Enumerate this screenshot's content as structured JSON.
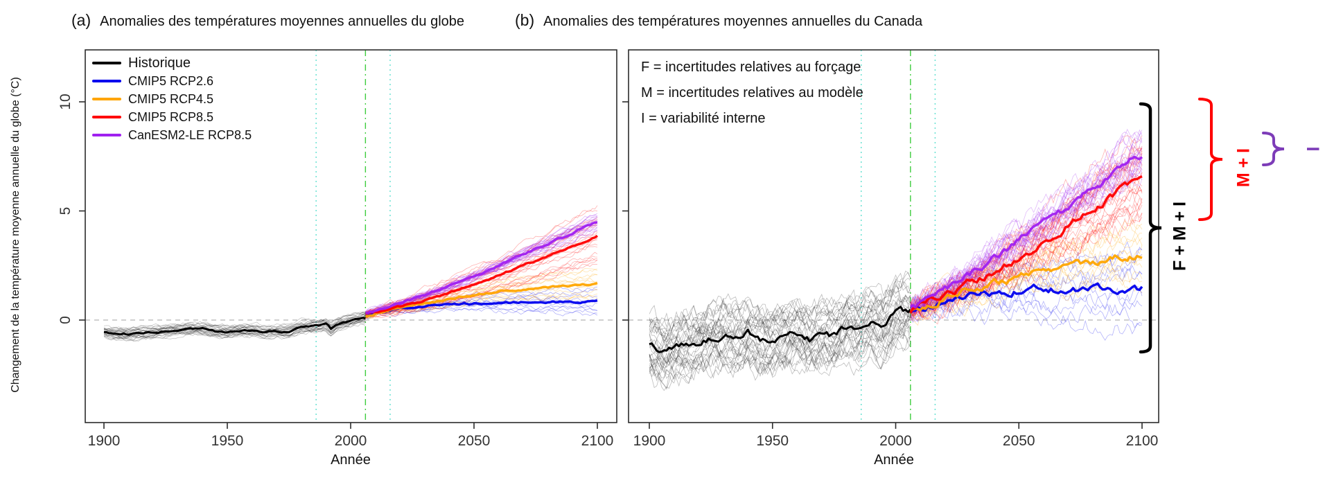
{
  "figure": {
    "panel_a": {
      "tag": "(a)",
      "title": "Anomalies des températures moyennes annuelles du globe"
    },
    "panel_b": {
      "tag": "(b)",
      "title": "Anomalies des températures moyennes annuelles du Canada"
    },
    "y_axis_label": "Changement de la température moyenne annuelle du globe (°C)",
    "x_axis_label": "Année"
  },
  "legend": {
    "items": [
      {
        "label": "Historique",
        "color": "#000000"
      },
      {
        "label": "CMIP5 RCP2.6",
        "color": "#0000ee"
      },
      {
        "label": "CMIP5 RCP4.5",
        "color": "#ffa500"
      },
      {
        "label": "CMIP5 RCP8.5",
        "color": "#ff0000"
      },
      {
        "label": "CanESM2-LE RCP8.5",
        "color": "#a020f0"
      }
    ]
  },
  "uncertainty_notes": {
    "lines": [
      "F = incertitudes relatives au forçage",
      "M = incertitudes relatives au modèle",
      "I = variabilité interne"
    ]
  },
  "brackets": [
    {
      "label": "F + M + I",
      "color": "#000000"
    },
    {
      "label": "M + I",
      "color": "#ff0000"
    },
    {
      "label": "I",
      "color": "#7d3cb8"
    }
  ],
  "chart_data": [
    {
      "type": "line",
      "title": "Anomalies des températures moyennes annuelles du globe",
      "xlabel": "Année",
      "ylabel": "Changement de la température moyenne annuelle du globe (°C)",
      "x_range": [
        1900,
        2100
      ],
      "ylim": [
        -4.7,
        12.4
      ],
      "x_ticks": [
        1900,
        1950,
        2000,
        2050,
        2100
      ],
      "y_ticks": [
        0,
        5,
        10
      ],
      "grid": false,
      "legend_position": "top-left",
      "reference_lines": {
        "vertical": [
          {
            "year": 1986,
            "style": "dotted",
            "color": "#5fe0cf"
          },
          {
            "year": 2006,
            "style": "dashdot",
            "color": "#3ecc3e"
          },
          {
            "year": 2016,
            "style": "dotted",
            "color": "#5fe0cf"
          }
        ],
        "horizontal": [
          {
            "value": 0,
            "style": "dashed",
            "color": "#b3b3b3"
          }
        ]
      },
      "mean_noise": 0.035,
      "series": [
        {
          "name": "Historique",
          "color": "#000000",
          "role": "historical",
          "members": 30,
          "spread": 0.25,
          "noise": 0.1,
          "years": [
            1900,
            1905,
            1910,
            1915,
            1920,
            1925,
            1930,
            1935,
            1940,
            1945,
            1950,
            1955,
            1960,
            1965,
            1970,
            1975,
            1980,
            1985,
            1990,
            1992,
            1995,
            2000,
            2005
          ],
          "values": [
            -0.55,
            -0.62,
            -0.65,
            -0.6,
            -0.55,
            -0.5,
            -0.45,
            -0.42,
            -0.4,
            -0.5,
            -0.55,
            -0.5,
            -0.48,
            -0.55,
            -0.5,
            -0.52,
            -0.32,
            -0.3,
            -0.2,
            -0.42,
            -0.18,
            -0.02,
            0.12
          ]
        },
        {
          "name": "CMIP5 RCP2.6",
          "color": "#0000ee",
          "role": "projection",
          "members": 10,
          "spread": 0.6,
          "noise": 0.12,
          "years": [
            2006,
            2020,
            2040,
            2060,
            2080,
            2100
          ],
          "values": [
            0.2,
            0.5,
            0.72,
            0.8,
            0.83,
            0.85
          ]
        },
        {
          "name": "CMIP5 RCP4.5",
          "color": "#ffa500",
          "role": "projection",
          "members": 12,
          "spread": 0.75,
          "noise": 0.12,
          "years": [
            2006,
            2020,
            2040,
            2060,
            2080,
            2100
          ],
          "values": [
            0.2,
            0.55,
            0.95,
            1.3,
            1.5,
            1.65
          ]
        },
        {
          "name": "CMIP5 RCP8.5",
          "color": "#ff0000",
          "role": "projection",
          "members": 22,
          "spread": 1.3,
          "noise": 0.12,
          "years": [
            2006,
            2020,
            2040,
            2060,
            2080,
            2100
          ],
          "values": [
            0.25,
            0.6,
            1.25,
            2.05,
            2.95,
            3.85
          ]
        },
        {
          "name": "CanESM2-LE RCP8.5",
          "color": "#a020f0",
          "role": "projection",
          "members": 22,
          "spread": 0.32,
          "noise": 0.12,
          "years": [
            2006,
            2020,
            2040,
            2060,
            2080,
            2100
          ],
          "values": [
            0.3,
            0.75,
            1.55,
            2.5,
            3.5,
            4.5
          ]
        }
      ]
    },
    {
      "type": "line",
      "title": "Anomalies des températures moyennes annuelles du Canada",
      "xlabel": "Année",
      "ylabel": "Changement de la température moyenne annuelle du globe (°C)",
      "x_range": [
        1900,
        2100
      ],
      "ylim": [
        -4.7,
        12.4
      ],
      "x_ticks": [
        1900,
        1950,
        2000,
        2050,
        2100
      ],
      "y_ticks": [
        0,
        5,
        10
      ],
      "grid": false,
      "legend_position": "none",
      "reference_lines": {
        "vertical": [
          {
            "year": 1986,
            "style": "dotted",
            "color": "#5fe0cf"
          },
          {
            "year": 2006,
            "style": "dashdot",
            "color": "#3ecc3e"
          },
          {
            "year": 2016,
            "style": "dotted",
            "color": "#5fe0cf"
          }
        ],
        "horizontal": [
          {
            "value": 0,
            "style": "dashed",
            "color": "#b3b3b3"
          }
        ]
      },
      "mean_noise": 0.13,
      "series": [
        {
          "name": "Historique",
          "color": "#000000",
          "role": "historical",
          "members": 35,
          "spread": 1.35,
          "noise": 0.5,
          "years": [
            1900,
            1905,
            1910,
            1915,
            1920,
            1925,
            1930,
            1935,
            1940,
            1945,
            1950,
            1955,
            1960,
            1965,
            1970,
            1975,
            1980,
            1985,
            1990,
            1995,
            2000,
            2005
          ],
          "values": [
            -1.2,
            -1.5,
            -1.35,
            -1.1,
            -1.0,
            -0.8,
            -0.7,
            -0.9,
            -0.6,
            -0.9,
            -1.0,
            -0.75,
            -0.6,
            -0.9,
            -0.7,
            -0.8,
            -0.3,
            -0.5,
            -0.1,
            -0.4,
            0.3,
            0.4
          ]
        },
        {
          "name": "CMIP5 RCP2.6",
          "color": "#0000ee",
          "role": "projection",
          "members": 10,
          "spread": 1.8,
          "noise": 0.45,
          "years": [
            2006,
            2020,
            2040,
            2060,
            2080,
            2100
          ],
          "values": [
            0.4,
            0.9,
            1.3,
            1.45,
            1.4,
            1.45
          ]
        },
        {
          "name": "CMIP5 RCP4.5",
          "color": "#ffa500",
          "role": "projection",
          "members": 12,
          "spread": 1.6,
          "noise": 0.45,
          "years": [
            2006,
            2020,
            2040,
            2060,
            2080,
            2100
          ],
          "values": [
            0.4,
            1.0,
            1.7,
            2.3,
            2.7,
            3.0
          ]
        },
        {
          "name": "CMIP5 RCP8.5",
          "color": "#ff0000",
          "role": "projection",
          "members": 26,
          "spread": 1.9,
          "noise": 0.45,
          "years": [
            2006,
            2020,
            2040,
            2060,
            2080,
            2100
          ],
          "values": [
            0.45,
            1.1,
            2.2,
            3.6,
            5.1,
            6.6
          ]
        },
        {
          "name": "CanESM2-LE RCP8.5",
          "color": "#a020f0",
          "role": "projection",
          "members": 24,
          "spread": 0.95,
          "noise": 0.45,
          "years": [
            2006,
            2020,
            2040,
            2060,
            2080,
            2100
          ],
          "values": [
            0.5,
            1.4,
            2.8,
            4.4,
            6.0,
            7.6
          ]
        }
      ]
    }
  ]
}
